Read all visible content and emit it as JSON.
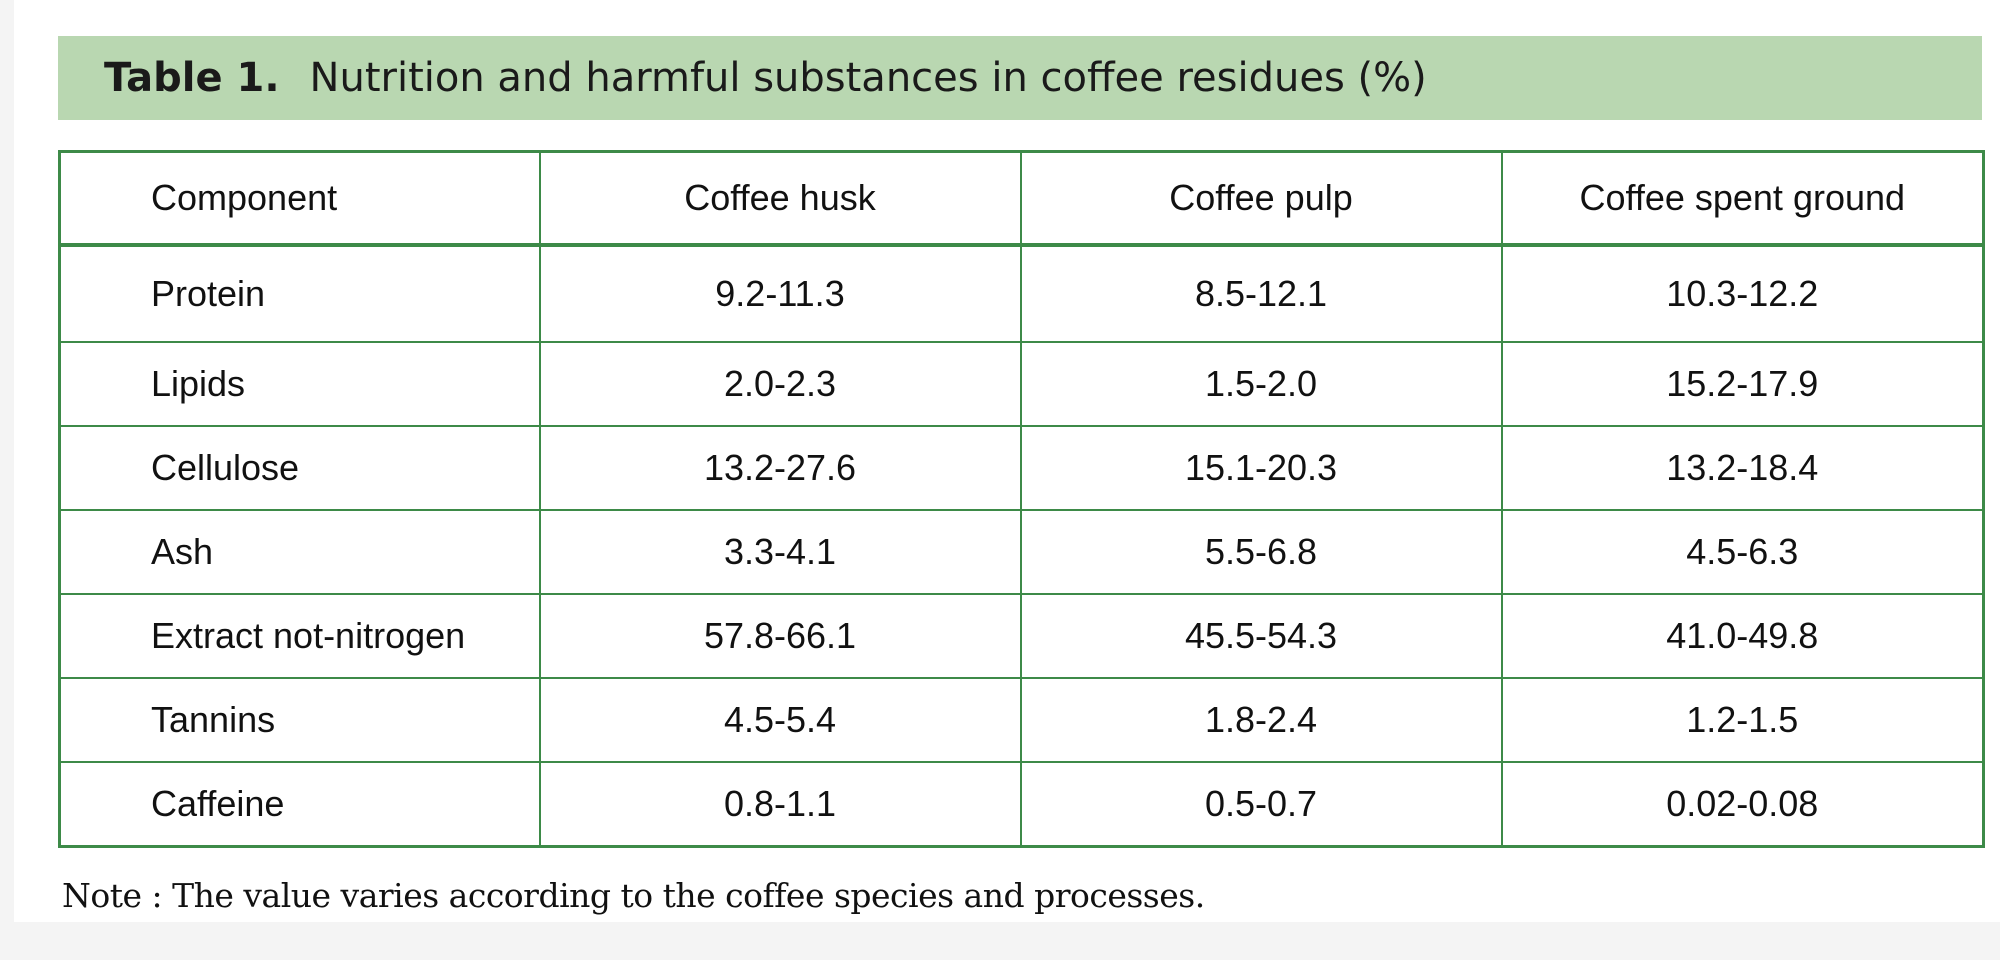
{
  "caption": {
    "label": "Table 1.",
    "text": "Nutrition and harmful substances in coffee residues (%)"
  },
  "table": {
    "headers": [
      "Component",
      "Coffee husk",
      "Coffee pulp",
      "Coffee spent ground"
    ],
    "rows": [
      [
        "Protein",
        "9.2-11.3",
        "8.5-12.1",
        "10.3-12.2"
      ],
      [
        "Lipids",
        "2.0-2.3",
        "1.5-2.0",
        "15.2-17.9"
      ],
      [
        "Cellulose",
        "13.2-27.6",
        "15.1-20.3",
        "13.2-18.4"
      ],
      [
        "Ash",
        "3.3-4.1",
        "5.5-6.8",
        "4.5-6.3"
      ],
      [
        "Extract not-nitrogen",
        "57.8-66.1",
        "45.5-54.3",
        "41.0-49.8"
      ],
      [
        "Tannins",
        "4.5-5.4",
        "1.8-2.4",
        "1.2-1.5"
      ],
      [
        "Caffeine",
        "0.8-1.1",
        "0.5-0.7",
        "0.02-0.08"
      ]
    ]
  },
  "note": "Note : The value varies according to the coffee species and processes.",
  "colors": {
    "caption_background": "#b9d7b1",
    "table_border": "#3d8a48"
  }
}
